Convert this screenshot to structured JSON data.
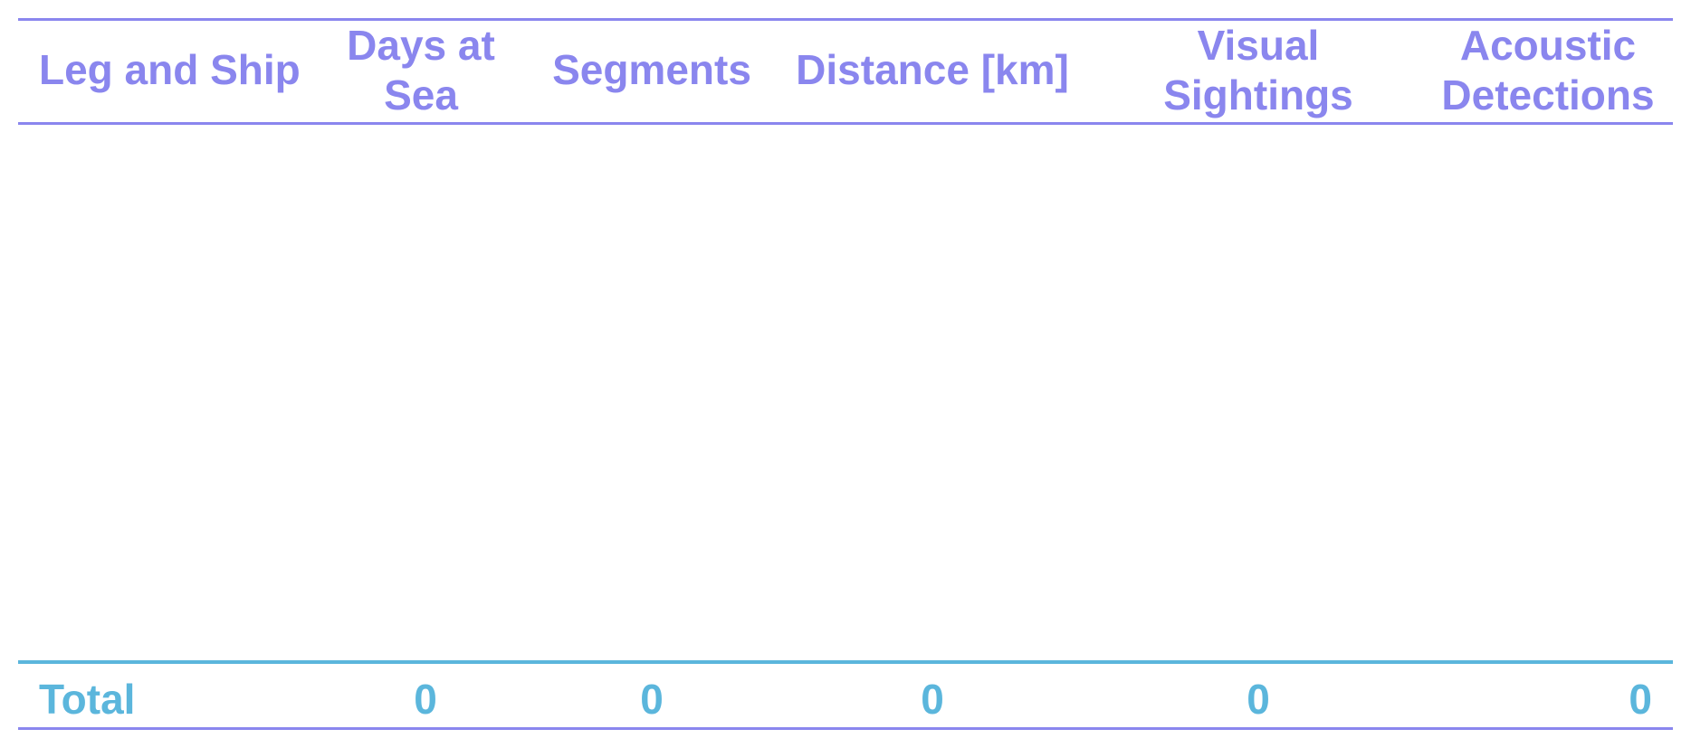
{
  "table": {
    "headers": [
      "Leg and Ship",
      "Days at Sea",
      "Segments",
      "Distance [km]",
      "Visual Sightings",
      "Acoustic Detections"
    ],
    "rows": [],
    "total": {
      "label": "Total",
      "values": [
        "0",
        "0",
        "0",
        "0",
        "0"
      ]
    }
  },
  "colors": {
    "header": "#8a86ee",
    "total": "#5bb6dc",
    "rule": "#8a86ee"
  }
}
